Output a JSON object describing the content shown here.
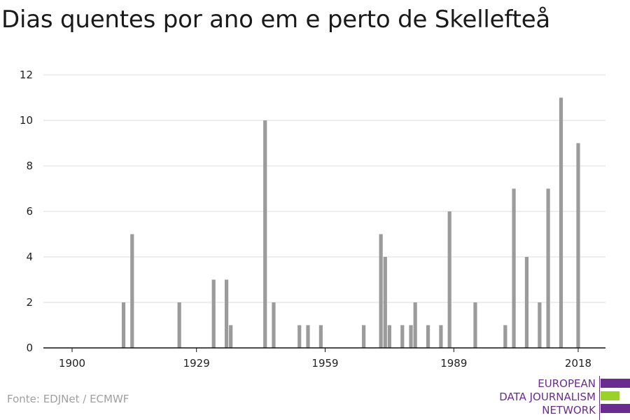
{
  "title": "Dias quentes por ano em e perto de Skellefteå",
  "source": "Fonte: EDJNet / ECMWF",
  "logo": {
    "line1": "EUROPEAN",
    "line2": "DATA JOURNALISM",
    "line3": "NETWORK",
    "colors": {
      "purple": "#6a2c91",
      "green": "#9ad22b"
    }
  },
  "chart_data": {
    "type": "bar",
    "title": "Dias quentes por ano em e perto de Skellefteå",
    "xlabel": "",
    "ylabel": "",
    "xlim": [
      1900,
      2020
    ],
    "ylim": [
      0,
      12
    ],
    "x_ticks": [
      1900,
      1929,
      1959,
      1989,
      2018
    ],
    "y_ticks": [
      0,
      2,
      4,
      6,
      8,
      10,
      12
    ],
    "grid": true,
    "bar_color": "#9b9b9b",
    "x": [
      1912,
      1914,
      1925,
      1933,
      1936,
      1937,
      1945,
      1947,
      1953,
      1955,
      1958,
      1968,
      1972,
      1973,
      1974,
      1977,
      1979,
      1980,
      1983,
      1986,
      1988,
      1994,
      2001,
      2003,
      2006,
      2009,
      2011,
      2014,
      2018
    ],
    "values": [
      2,
      5,
      2,
      3,
      3,
      1,
      10,
      2,
      1,
      1,
      1,
      1,
      5,
      4,
      1,
      1,
      1,
      2,
      1,
      1,
      6,
      2,
      1,
      7,
      4,
      2,
      7,
      11,
      9
    ]
  }
}
